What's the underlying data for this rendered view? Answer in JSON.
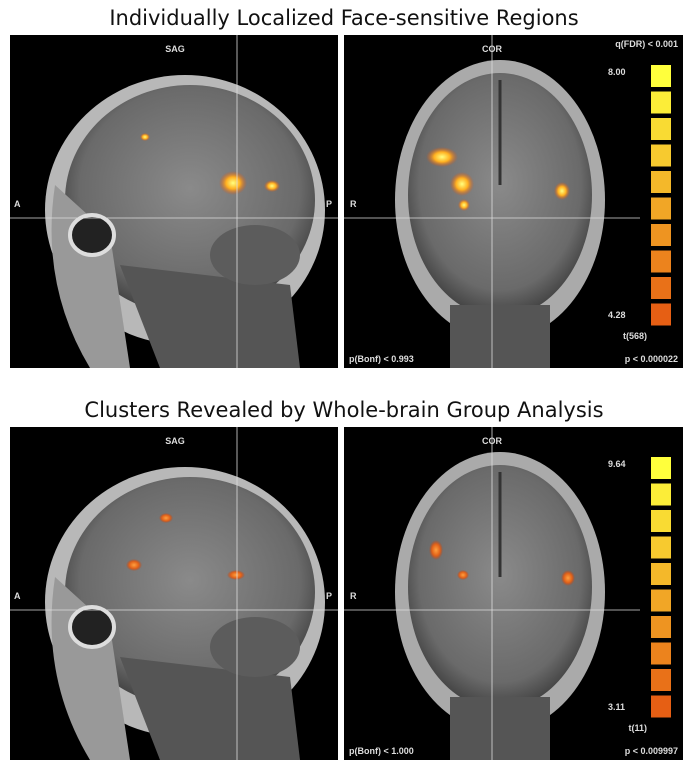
{
  "panels": [
    {
      "title": "Individually Localized Face-sensitive Regions",
      "sag": {
        "view": "SAG",
        "left": "A",
        "right": "P"
      },
      "cor": {
        "view": "COR",
        "left": "R"
      },
      "threshold": "q(FDR) < 0.001",
      "colorbar": {
        "max": "8.00",
        "min": "4.28",
        "stat": "t(568)"
      },
      "bonf": "p(Bonf) < 0.993",
      "p": "p < 0.000022"
    },
    {
      "title": "Clusters Revealed by Whole-brain Group Analysis",
      "sag": {
        "view": "SAG",
        "left": "A",
        "right": "P"
      },
      "cor": {
        "view": "COR",
        "left": "R"
      },
      "colorbar": {
        "max": "9.64",
        "min": "3.11",
        "stat": "t(11)"
      },
      "bonf": "p(Bonf) < 1.000",
      "p": "p < 0.009997"
    }
  ]
}
